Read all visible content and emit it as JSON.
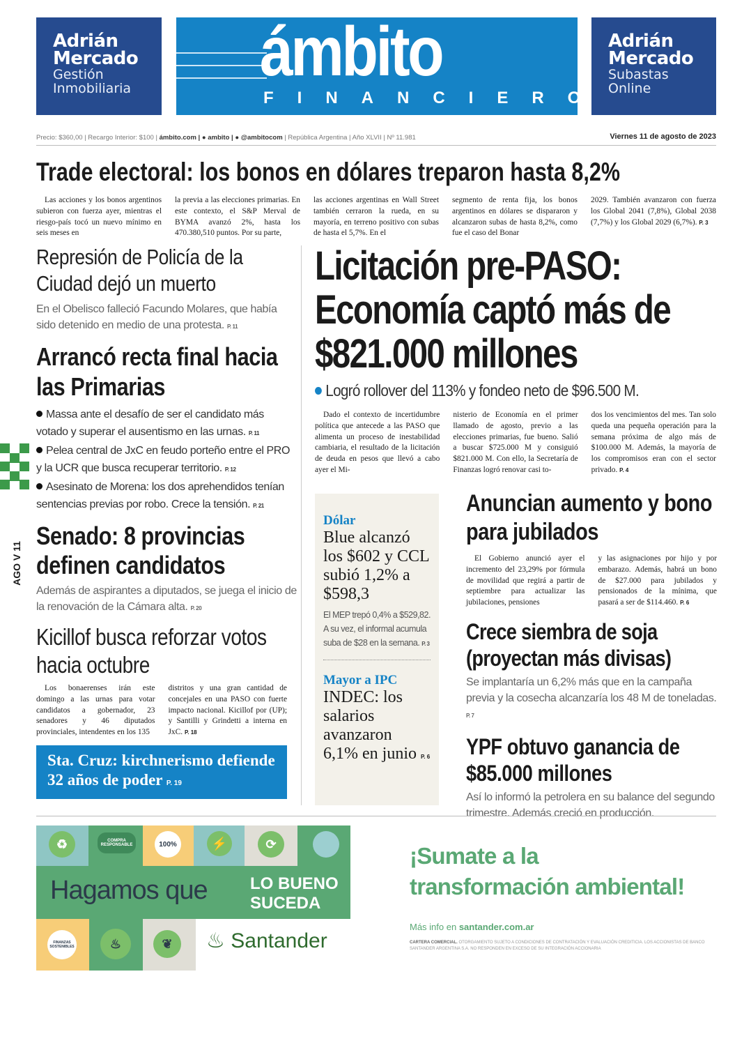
{
  "masthead": {
    "left_ad": {
      "line1": "Adrián",
      "line2": "Mercado",
      "line3": "Gestión",
      "line4": "Inmobiliaria"
    },
    "logo": {
      "name": "ámbito",
      "sub": "FINANCIERO"
    },
    "right_ad": {
      "line1": "Adrián",
      "line2": "Mercado",
      "line3": "Subastas",
      "line4": "Online"
    },
    "colors": {
      "brand_blue": "#1583c6",
      "adrian_blue": "#264b8f"
    }
  },
  "infobar": {
    "price": "Precio: $360,00 | Recargo Interior: $100 |",
    "web": "ámbito.com |",
    "facebook": "ambito |",
    "twitter": "@ambitocom",
    "edition": "| República Argentina | Año XLVII | Nº 11.981",
    "date": "Viernes 11 de agosto de 2023"
  },
  "side_label": "AGO V 11",
  "top_story": {
    "headline": "Trade electoral: los bonos en dólares treparon hasta 8,2%",
    "columns": [
      "Las acciones y los bonos argentinos subieron con fuerza ayer, mientras el riesgo-país tocó un nuevo mínimo en seis meses en",
      "la previa a las elecciones primarias. En este contexto, el S&P Merval de BYMA avanzó 2%, hasta los 470.380,510 puntos. Por su parte,",
      "las acciones argentinas en Wall Street también cerraron la rueda, en su mayoría, en terreno positivo con subas de hasta el 5,7%. En el",
      "segmento de renta fija, los bonos argentinos en dólares se dispararon y alcanzaron subas de hasta 8,2%, como fue el caso del Bonar",
      "2029. También avanzaron con fuerza los Global 2041 (7,8%), Global 2038 (7,7%) y los Global 2029 (6,7%)."
    ],
    "page": "P. 3"
  },
  "left": {
    "represion": {
      "headline": "Represión de Policía de la Ciudad dejó un muerto",
      "sub": "En el Obelisco falleció Facundo Molares, que había sido detenido en medio de una protesta.",
      "page": "P. 11"
    },
    "arranco": {
      "headline": "Arrancó recta final hacia las Primarias",
      "bullets": [
        {
          "text": "Massa ante el desafío de ser el candidato más votado y superar el ausentismo en las urnas.",
          "page": "P. 11"
        },
        {
          "text": "Pelea central de JxC en feudo porteño entre el PRO y la UCR que busca recuperar territorio.",
          "page": "P. 12"
        },
        {
          "text": "Asesinato de Morena: los dos aprehendidos tenían sentencias previas por robo. Crece la tensión.",
          "page": "P. 21"
        }
      ]
    },
    "senado": {
      "headline": "Senado: 8 provincias definen candidatos",
      "sub": "Además de aspirantes a diputados, se juega el inicio de la renovación de la Cámara alta.",
      "page": "P. 20"
    },
    "kicillof": {
      "headline": "Kicillof busca reforzar votos hacia octubre",
      "columns": [
        "Los bonaerenses irán este domingo a las urnas para votar candidatos a gobernador, 23 senadores y 46 diputados provinciales, intendentes en los 135",
        "distritos y una gran cantidad de concejales en una PASO con fuerte impacto nacional. Kicillof por (UP); y Santilli y Grindetti a interna en JxC."
      ],
      "page": "P. 18"
    },
    "santa_cruz": {
      "headline": "Sta. Cruz: kirchnerismo defiende 32 años de poder",
      "page": "P. 19"
    }
  },
  "main": {
    "headline": "Licitación pre-PASO: Economía captó más de $821.000 millones",
    "sub": "Logró rollover del 113% y fondeo neto de $96.500 M.",
    "columns": [
      "Dado el contexto de incertidumbre política que antecede a las PASO que alimenta un proceso de inestabilidad cambiaria, el resultado de la licitación de deuda en pesos que llevó a cabo ayer el Mi-",
      "nisterio de Economía en el primer llamado de agosto, previo a las elecciones primarias, fue bueno. Salió a buscar $725.000 M y consiguió $821.000 M. Con ello, la Secretaría de Finanzas logró renovar casi to-",
      "dos los vencimientos del mes. Tan solo queda una pequeña operación para la semana próxima de algo más de $100.000 M. Además, la mayoría de los compromisos eran con el sector privado."
    ],
    "page": "P. 4"
  },
  "sidebar": {
    "dolar": {
      "kicker": "Dólar",
      "headline": "Blue alcanzó los $602 y CCL subió 1,2% a $598,3",
      "sub": "El MEP trepó 0,4% a $529,82. A su vez, el informal acumula suba de $28 en la semana.",
      "page": "P. 3"
    },
    "ipc": {
      "kicker": "Mayor a IPC",
      "headline": "INDEC: los salarios avanzaron 6,1% en junio",
      "page": "P. 6"
    }
  },
  "right": {
    "jubilados": {
      "headline": "Anuncian aumento y bono para jubilados",
      "columns": [
        "El Gobierno anunció ayer el incremento del 23,29% por fórmula de movilidad que regirá a partir de septiembre para actualizar las jubilaciones, pensiones",
        "y las asignaciones por hijo y por embarazo. Además, habrá un bono de $27.000 para jubilados y pensionados de la mínima, que pasará a ser de $114.460."
      ],
      "page": "P. 6"
    },
    "soja": {
      "headline": "Crece siembra de soja (proyectan más divisas)",
      "sub": "Se implantaría un 6,2% más que en la campaña previa y la cosecha alcanzaría los 48 M de toneladas.",
      "page": "P. 7"
    },
    "ypf": {
      "headline": "YPF obtuvo ganancia de $85.000 millones",
      "sub": "Así lo informó la petrolera en su balance del segundo trimestre. Además creció en producción.",
      "page": ""
    }
  },
  "ad": {
    "badges": [
      "COMPRA RESPONSABLE",
      "100%",
      "FINANZAS SOSTENIBLES"
    ],
    "slogan1": "Hagamos que",
    "slogan2": "LO BUENO",
    "slogan3": "SUCEDA",
    "brand": "Santander",
    "title1": "¡Sumate a la",
    "title2": "transformación ambiental!",
    "more_prefix": "Más info en",
    "more_link": "santander.com.ar",
    "fine_bold": "CARTERA COMERCIAL.",
    "fine": "OTORGAMIENTO SUJETO A CONDICIONES DE CONTRATACIÓN Y EVALUACIÓN CREDITICIA. LOS ACCIONISTAS DE BANCO SANTANDER ARGENTINA S.A. NO RESPONDEN EN EXCESO DE SU INTEGRACIÓN ACCIONARIA",
    "colors": {
      "green": "#5aa874",
      "dark_green": "#3f9a68",
      "teal": "#8fc6c4",
      "yellow": "#f7cd78",
      "grey": "#e0ded6",
      "text_dark": "#2c3a4a"
    }
  }
}
